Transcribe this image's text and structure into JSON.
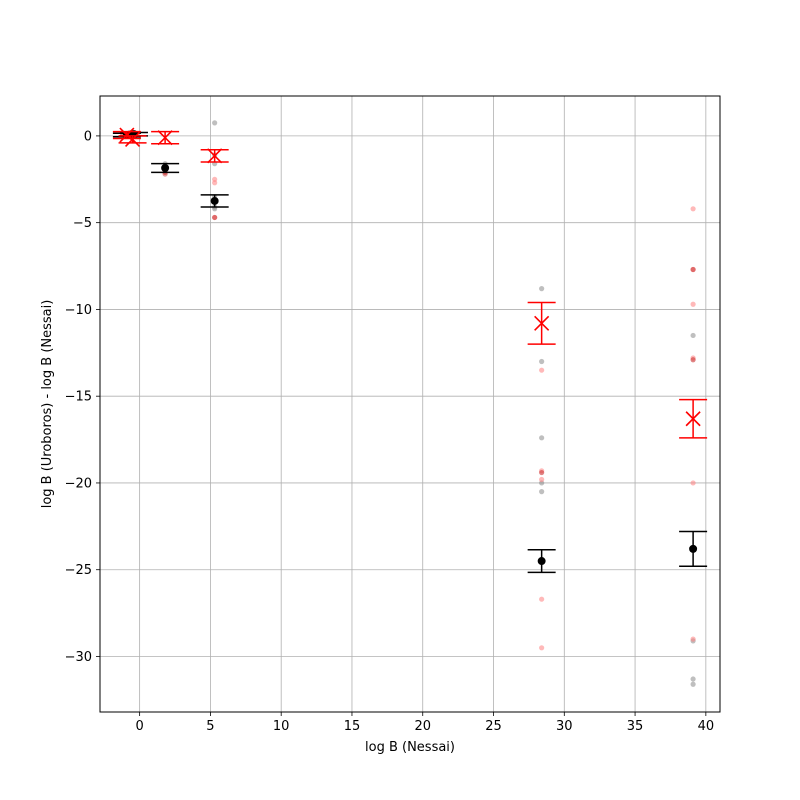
{
  "chart_data": {
    "type": "scatter",
    "title": "",
    "xlabel": "log B (Nessai)",
    "ylabel": "log B (Uroboros) - log B (Nessai)",
    "xlim": [
      -2.8,
      41.0
    ],
    "ylim": [
      -33.2,
      2.3
    ],
    "xticks": [
      0,
      5,
      10,
      15,
      20,
      25,
      30,
      35,
      40
    ],
    "yticks": [
      0,
      -5,
      -10,
      -15,
      -20,
      -25,
      -30
    ],
    "grid": true,
    "colors": {
      "black_series": "#000000",
      "red_series": "#ff0000",
      "grid": "#b0b0b0"
    },
    "series": [
      {
        "marker": "dot",
        "color": "#000000",
        "points": [
          {
            "x": -0.9,
            "y": 0.05,
            "err": 0.1
          },
          {
            "x": -0.4,
            "y": 0.1,
            "err": 0.1
          },
          {
            "x": 1.8,
            "y": -1.85,
            "err": 0.25
          },
          {
            "x": 5.3,
            "y": -3.75,
            "err": 0.35
          },
          {
            "x": 28.4,
            "y": -24.5,
            "err": 0.65
          },
          {
            "x": 39.1,
            "y": -23.8,
            "err": 1.0
          }
        ]
      },
      {
        "marker": "x",
        "color": "#ff0000",
        "points": [
          {
            "x": -0.9,
            "y": 0.05,
            "err": 0.2
          },
          {
            "x": -0.5,
            "y": -0.2,
            "err": 0.2
          },
          {
            "x": 1.8,
            "y": -0.1,
            "err": 0.35
          },
          {
            "x": 5.3,
            "y": -1.15,
            "err": 0.35
          },
          {
            "x": 28.4,
            "y": -10.8,
            "err": 1.2
          },
          {
            "x": 39.1,
            "y": -16.3,
            "err": 1.1
          }
        ]
      }
    ],
    "samples": {
      "gray": [
        [
          5.3,
          0.75
        ],
        [
          5.3,
          -1.1
        ],
        [
          5.3,
          -1.6
        ],
        [
          5.3,
          -3.5
        ],
        [
          5.3,
          -3.7
        ],
        [
          5.3,
          -4.1
        ],
        [
          5.3,
          -4.2
        ],
        [
          1.8,
          -1.6
        ],
        [
          1.8,
          -1.8
        ],
        [
          1.8,
          -2.0
        ],
        [
          1.8,
          -2.2
        ],
        [
          -0.7,
          0.2
        ],
        [
          -0.4,
          0.15
        ],
        [
          -1.0,
          0.0
        ],
        [
          28.4,
          -8.8
        ],
        [
          28.4,
          -13.0
        ],
        [
          28.4,
          -17.4
        ],
        [
          28.4,
          -20.0
        ],
        [
          28.4,
          -20.5
        ],
        [
          39.1,
          -11.5
        ],
        [
          39.1,
          -29.1
        ],
        [
          39.1,
          -31.3
        ],
        [
          39.1,
          -31.6
        ]
      ],
      "pink": [
        [
          5.3,
          -2.5
        ],
        [
          5.3,
          -2.7
        ],
        [
          5.3,
          -4.7
        ],
        [
          1.8,
          -2.2
        ],
        [
          1.8,
          -2.0
        ],
        [
          28.4,
          -13.5
        ],
        [
          28.4,
          -19.3
        ],
        [
          28.4,
          -19.8
        ],
        [
          28.4,
          -26.7
        ],
        [
          28.4,
          -29.5
        ],
        [
          39.1,
          -4.2
        ],
        [
          39.1,
          -7.7
        ],
        [
          39.1,
          -9.7
        ],
        [
          39.1,
          -12.8
        ],
        [
          39.1,
          -20.0
        ],
        [
          39.1,
          -29.0
        ]
      ],
      "red": [
        [
          -1.2,
          0.05
        ],
        [
          -0.8,
          0.1
        ],
        [
          -0.6,
          -0.05
        ],
        [
          -0.3,
          0.0
        ],
        [
          1.8,
          -2.1
        ],
        [
          5.3,
          -4.7
        ],
        [
          28.4,
          -19.4
        ],
        [
          39.1,
          -7.7
        ],
        [
          39.1,
          -12.9
        ]
      ]
    }
  }
}
